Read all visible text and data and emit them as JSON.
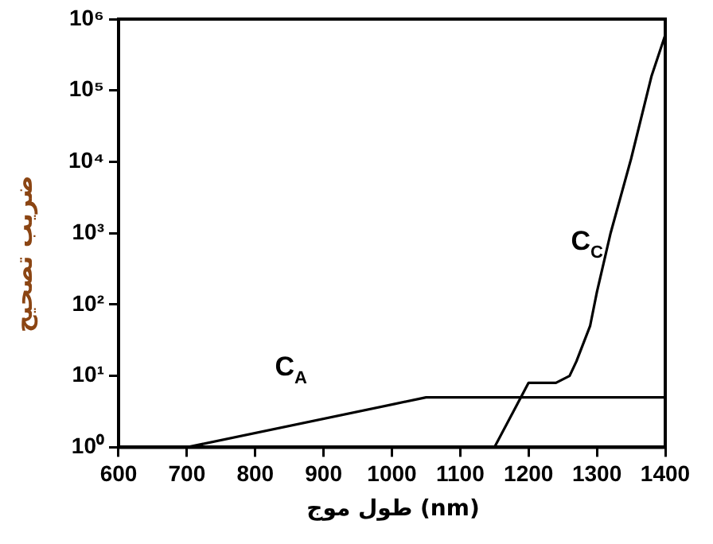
{
  "chart_data": {
    "type": "line",
    "xlabel": "طول موج (nm)",
    "ylabel": "ضریب تصحیح",
    "log": "y",
    "grid": false,
    "legend": false,
    "marker": "none",
    "line_style": "solid",
    "xlim": [
      600,
      1400
    ],
    "xticks": [
      600,
      700,
      800,
      900,
      1000,
      1100,
      1200,
      1300,
      1400
    ],
    "ylim": [
      1,
      1000000
    ],
    "yticks": [
      {
        "value": 1,
        "label": "10⁰"
      },
      {
        "value": 10,
        "label": "10¹"
      },
      {
        "value": 100,
        "label": "10²"
      },
      {
        "value": 1000,
        "label": "10³"
      },
      {
        "value": 10000,
        "label": "10⁴"
      },
      {
        "value": 100000,
        "label": "10⁵"
      },
      {
        "value": 1000000,
        "label": "10⁶"
      }
    ],
    "series": [
      {
        "name": "C$_{A}$",
        "color": "#000000",
        "x": [
          700,
          1050,
          1400
        ],
        "values": [
          1,
          5,
          5
        ]
      },
      {
        "name": "C$_{C}$",
        "color": "#000000",
        "x": [
          1150,
          1200,
          1240,
          1260,
          1270,
          1290,
          1300,
          1320,
          1350,
          1380,
          1400
        ],
        "values": [
          1,
          8,
          8,
          10,
          16,
          50,
          150,
          1000,
          11000,
          160000,
          600000
        ]
      }
    ]
  }
}
